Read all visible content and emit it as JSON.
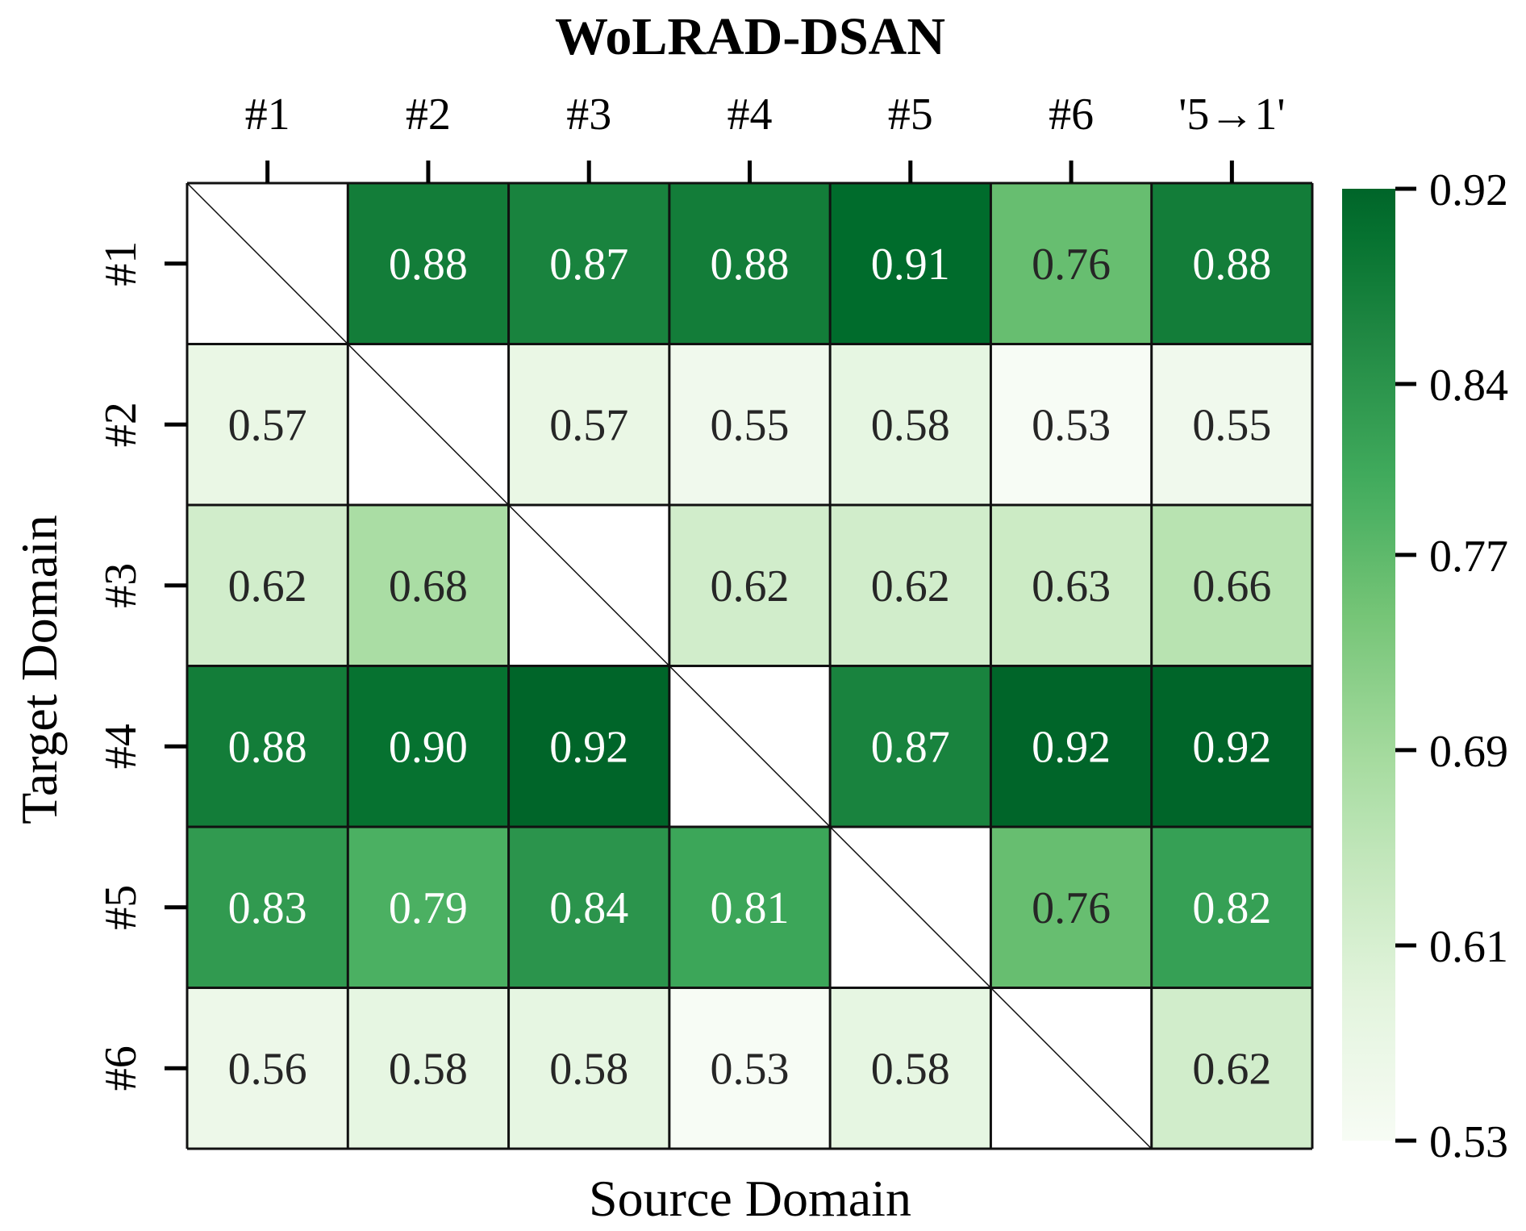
{
  "chart_data": {
    "type": "heatmap",
    "title": "WoLRAD-DSAN",
    "xlabel": "Source Domain",
    "ylabel": "Target Domain",
    "x_categories": [
      "#1",
      "#2",
      "#3",
      "#4",
      "#5",
      "#6",
      "'5→1'"
    ],
    "y_categories": [
      "#1",
      "#2",
      "#3",
      "#4",
      "#5",
      "#6"
    ],
    "values": [
      [
        null,
        0.88,
        0.87,
        0.88,
        0.91,
        0.76,
        0.88
      ],
      [
        0.57,
        null,
        0.57,
        0.55,
        0.58,
        0.53,
        0.55
      ],
      [
        0.62,
        0.68,
        null,
        0.62,
        0.62,
        0.63,
        0.66
      ],
      [
        0.88,
        0.9,
        0.92,
        null,
        0.87,
        0.92,
        0.92
      ],
      [
        0.83,
        0.79,
        0.84,
        0.81,
        null,
        0.76,
        0.82
      ],
      [
        0.56,
        0.58,
        0.58,
        0.53,
        0.58,
        null,
        0.62
      ]
    ],
    "value_labels": [
      [
        "",
        "0.88",
        "0.87",
        "0.88",
        "0.91",
        "0.76",
        "0.88"
      ],
      [
        "0.57",
        "",
        "0.57",
        "0.55",
        "0.58",
        "0.53",
        "0.55"
      ],
      [
        "0.62",
        "0.68",
        "",
        "0.62",
        "0.62",
        "0.63",
        "0.66"
      ],
      [
        "0.88",
        "0.90",
        "0.92",
        "",
        "0.87",
        "0.92",
        "0.92"
      ],
      [
        "0.83",
        "0.79",
        "0.84",
        "0.81",
        "",
        "0.76",
        "0.82"
      ],
      [
        "0.56",
        "0.58",
        "0.58",
        "0.53",
        "0.58",
        "",
        "0.62"
      ]
    ],
    "x_ticks_position": "top",
    "colorbar": {
      "position": "right",
      "range": [
        0.53,
        0.92
      ],
      "ticks": [
        0.53,
        0.61,
        0.69,
        0.77,
        0.84,
        0.92
      ],
      "tick_labels": [
        "0.53",
        "0.61",
        "0.69",
        "0.77",
        "0.84",
        "0.92"
      ],
      "colormap": "Greens"
    },
    "diagonal_cells": "empty with diagonal line"
  }
}
